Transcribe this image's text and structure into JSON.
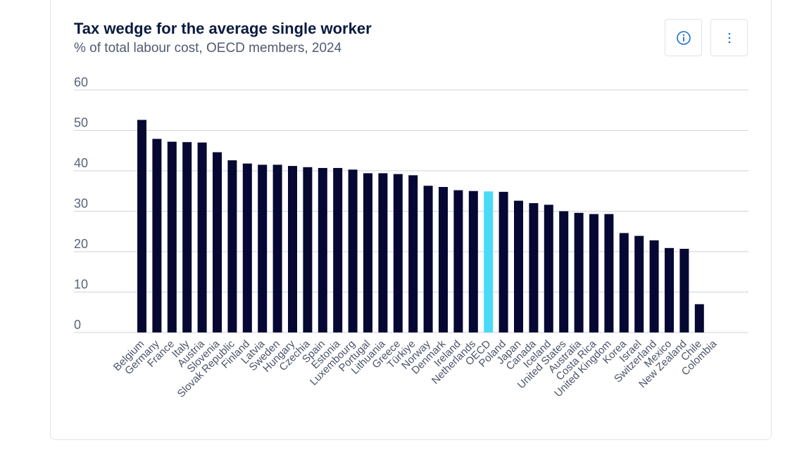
{
  "colors": {
    "bar": "#060833",
    "highlight": "#4ad9f7",
    "gridline": "#cfd3da",
    "axis_text": "#5a6478",
    "title": "#0b1b3f"
  },
  "buttons": {
    "info_icon": "info-icon",
    "more_icon": "more-vertical-icon"
  },
  "chart_data": {
    "type": "bar",
    "title": "Tax wedge for the average single worker",
    "subtitle": "% of total labour cost, OECD members, 2024",
    "xlabel": "",
    "ylabel": "",
    "ylim": [
      0,
      60
    ],
    "yticks": [
      0,
      10,
      20,
      30,
      40,
      50,
      60
    ],
    "grid": true,
    "highlight_category": "OECD",
    "categories": [
      "Belgium",
      "Germany",
      "France",
      "Italy",
      "Austria",
      "Slovenia",
      "Slovak Republic",
      "Finland",
      "Latvia",
      "Sweden",
      "Hungary",
      "Czechia",
      "Spain",
      "Estonia",
      "Luxembourg",
      "Portugal",
      "Lithuania",
      "Greece",
      "Türkiye",
      "Norway",
      "Denmark",
      "Ireland",
      "Netherlands",
      "OECD",
      "Poland",
      "Japan",
      "Canada",
      "Iceland",
      "United States",
      "Australia",
      "Costa Rica",
      "United Kingdom",
      "Korea",
      "Israel",
      "Switzerland",
      "Mexico",
      "New Zealand",
      "Chile",
      "Colombia"
    ],
    "values": [
      52.6,
      47.9,
      47.2,
      47.1,
      47.0,
      44.6,
      42.6,
      41.8,
      41.5,
      41.5,
      41.2,
      40.9,
      40.7,
      40.7,
      40.3,
      39.4,
      39.4,
      39.2,
      38.9,
      36.3,
      36.0,
      35.2,
      35.0,
      34.9,
      34.8,
      32.6,
      32.0,
      31.6,
      30.0,
      29.6,
      29.3,
      29.3,
      24.6,
      23.9,
      22.8,
      20.9,
      20.7,
      7.0,
      0.0
    ]
  }
}
